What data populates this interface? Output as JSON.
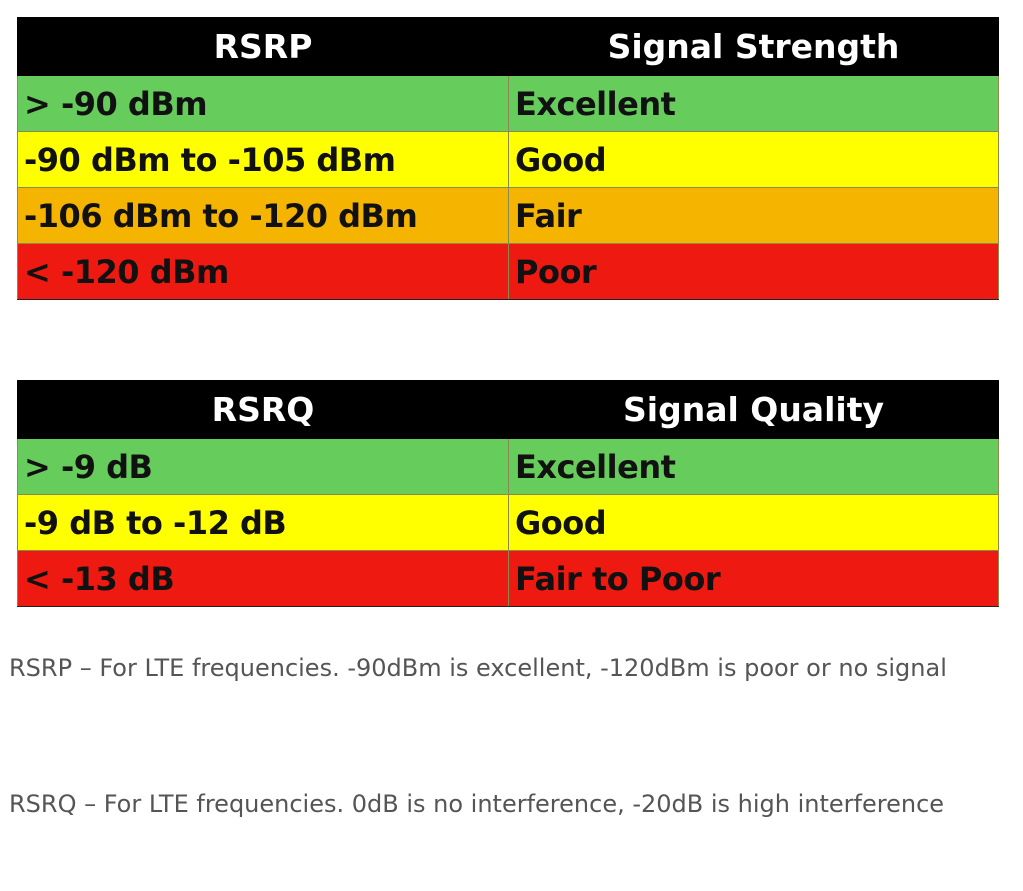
{
  "rsrp_table": {
    "headers": [
      "RSRP",
      "Signal Strength"
    ],
    "rows": [
      {
        "range": "> -90 dBm",
        "rating": "Excellent",
        "color": "#66cc5c"
      },
      {
        "range": "-90 dBm to -105 dBm",
        "rating": "Good",
        "color": "#ffff00"
      },
      {
        "range": "-106 dBm to -120 dBm",
        "rating": "Fair",
        "color": "#f5b400"
      },
      {
        "range": "< -120 dBm",
        "rating": "Poor",
        "color": "#ee1a12"
      }
    ]
  },
  "rsrq_table": {
    "headers": [
      "RSRQ",
      "Signal Quality"
    ],
    "rows": [
      {
        "range": "> -9 dB",
        "rating": "Excellent",
        "color": "#66cc5c"
      },
      {
        "range": "-9 dB to -12 dB",
        "rating": "Good",
        "color": "#ffff00"
      },
      {
        "range": "< -13 dB",
        "rating": "Fair to Poor",
        "color": "#ee1a12"
      }
    ]
  },
  "descriptions": {
    "rsrp": "RSRP – For LTE frequencies. -90dBm is excellent, -120dBm is poor or no signal",
    "rsrq": "RSRQ – For LTE frequencies. 0dB is no interference, -20dB is high interference"
  }
}
